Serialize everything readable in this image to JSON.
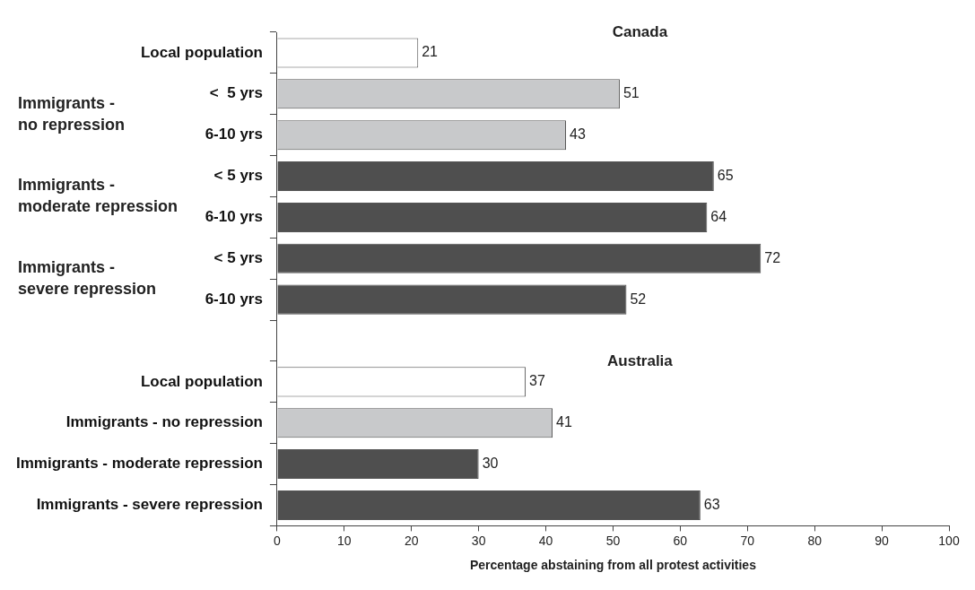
{
  "chart_data": {
    "type": "bar",
    "orientation": "horizontal",
    "categories": [
      "Local population",
      "<  5 yrs",
      "6-10 yrs",
      "< 5 yrs",
      "6-10 yrs",
      "< 5 yrs",
      "6-10 yrs",
      null,
      "Local population",
      "Immigrants - no repression",
      "Immigrants - moderate repression",
      "Immigrants - severe repression"
    ],
    "values": [
      21,
      51,
      43,
      65,
      64,
      72,
      52,
      null,
      37,
      41,
      30,
      63
    ],
    "data_labels": true,
    "colors": [
      "#ffffff",
      "#c8c9cb",
      "#c8c9cb",
      "#4f4f4f",
      "#4f4f4f",
      "#4f4f4f",
      "#4f4f4f",
      null,
      "#ffffff",
      "#c8c9cb",
      "#4f4f4f",
      "#4f4f4f"
    ],
    "xlabel": "Percentage abstaining from all protest activities",
    "xlim": [
      0,
      100
    ],
    "xticks": [
      0,
      10,
      20,
      30,
      40,
      50,
      60,
      70,
      80,
      90,
      100
    ],
    "annotations": [
      "Canada",
      "Australia",
      "Immigrants - no repression",
      "Immigrants - moderate repression",
      "Immigrants - severe repression"
    ],
    "grid": false,
    "legend": false
  }
}
